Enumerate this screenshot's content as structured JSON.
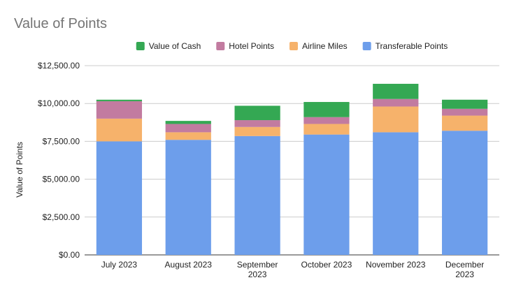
{
  "chart_data": {
    "type": "bar",
    "stacked": true,
    "title": "Value of Points",
    "ylabel": "Value of Points",
    "xlabel": "",
    "ylim": [
      0,
      12500
    ],
    "yticks": [
      0,
      2500,
      5000,
      7500,
      10000,
      12500
    ],
    "ytick_labels": [
      "$0.00",
      "$2,500.00",
      "$5,000.00",
      "$7,500.00",
      "$10,000.00",
      "$12,500.00"
    ],
    "grid": true,
    "legend_position": "top",
    "categories": [
      "July 2023",
      "August 2023",
      "September 2023",
      "October 2023",
      "November 2023",
      "December 2023"
    ],
    "category_lines": [
      [
        "July 2023"
      ],
      [
        "August 2023"
      ],
      [
        "September",
        "2023"
      ],
      [
        "October 2023"
      ],
      [
        "November 2023"
      ],
      [
        "December",
        "2023"
      ]
    ],
    "series": [
      {
        "name": "Transferable Points",
        "color": "#6d9eeb",
        "values": [
          7500,
          7600,
          7850,
          7950,
          8100,
          8200
        ]
      },
      {
        "name": "Airline Miles",
        "color": "#f6b26b",
        "values": [
          1500,
          500,
          600,
          700,
          1700,
          1000
        ]
      },
      {
        "name": "Hotel Points",
        "color": "#c27ba0",
        "values": [
          1150,
          550,
          450,
          450,
          500,
          450
        ]
      },
      {
        "name": "Value of Cash",
        "color": "#34a853",
        "values": [
          100,
          200,
          950,
          1000,
          1000,
          600
        ]
      }
    ],
    "legend_order": [
      "Value of Cash",
      "Hotel Points",
      "Airline Miles",
      "Transferable Points"
    ]
  }
}
